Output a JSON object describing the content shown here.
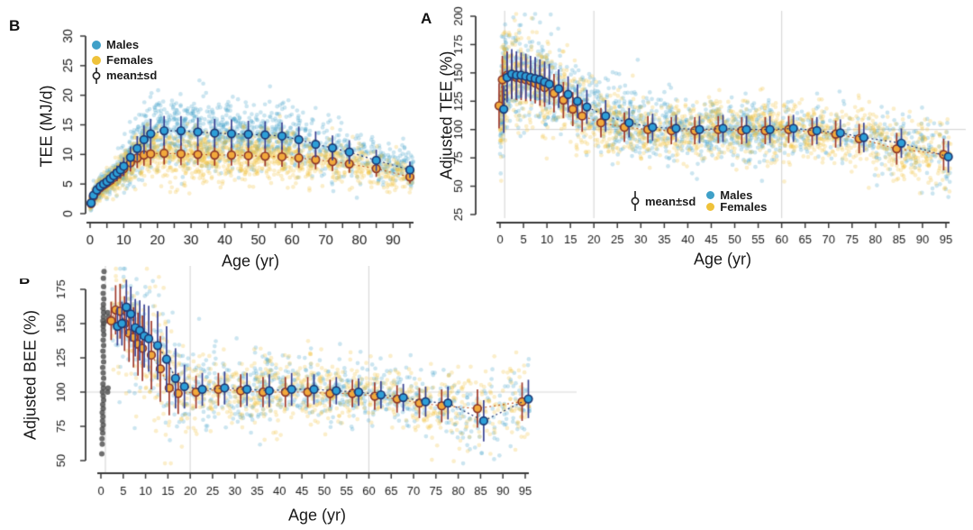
{
  "figure": {
    "panels": [
      {
        "label": "B",
        "xlabel": "Age (yr)",
        "ylabel": "TEE (MJ/d)"
      },
      {
        "label": "A",
        "xlabel": "Age (yr)",
        "ylabel": "Adjusted TEE (%)"
      },
      {
        "label": "B",
        "xlabel": "Age (yr)",
        "ylabel": "Adjusted BEE (%)"
      }
    ],
    "legend": {
      "males": "Males",
      "females": "Females",
      "meansd": "mean±sd"
    }
  },
  "colors": {
    "male_scatter": "#3FA0C8",
    "female_scatter": "#EFC23A",
    "male_mean_fill": "#2D9FD8",
    "male_mean_stroke": "#1E3A74",
    "male_errbar": "#3A4392",
    "male_dotline": "#27356E",
    "female_mean_fill": "#F2A93B",
    "female_mean_stroke": "#8E3A2B",
    "female_errbar": "#A03A2C",
    "female_dotline": "#C2602B",
    "neonate_gray": "#4A4A4A",
    "grid": "#D9D9D9",
    "axis": "#3A3A3A",
    "text": "#1A1A1A"
  },
  "chart_data": [
    {
      "id": "tee",
      "panel_label": "B",
      "type": "scatter",
      "xlabel": "Age (yr)",
      "ylabel": "TEE (MJ/d)",
      "xlim": [
        0,
        96
      ],
      "ylim": [
        0,
        30
      ],
      "xticks": [
        0,
        5,
        10,
        15,
        20,
        25,
        30,
        35,
        40,
        45,
        50,
        55,
        60,
        65,
        70,
        75,
        80,
        85,
        90,
        95
      ],
      "xlabels": [
        0,
        10,
        20,
        30,
        40,
        50,
        60,
        70,
        80,
        90
      ],
      "yticks": [
        0,
        5,
        10,
        15,
        20,
        25,
        30
      ],
      "gridlines": {
        "v": [],
        "h": []
      },
      "legend": [
        "Males",
        "Females",
        "mean±sd"
      ],
      "series": [
        {
          "name": "Males mean±sd",
          "ages": [
            0.3,
            1,
            2,
            3,
            4,
            5,
            6,
            7,
            8,
            9,
            10,
            12,
            14,
            16,
            18,
            22,
            27,
            32,
            37,
            42,
            47,
            52,
            57,
            62,
            67,
            72,
            77,
            85,
            95
          ],
          "mean": [
            1.8,
            3.1,
            4.0,
            4.6,
            5.0,
            5.4,
            5.9,
            6.4,
            6.9,
            7.4,
            8.0,
            9.5,
            11.0,
            12.5,
            13.5,
            14.0,
            14.0,
            13.8,
            13.6,
            13.5,
            13.4,
            13.3,
            13.1,
            12.5,
            11.7,
            11.1,
            10.4,
            9.0,
            7.4
          ],
          "sd": [
            0.4,
            0.6,
            0.7,
            0.8,
            0.9,
            1.0,
            1.0,
            1.1,
            1.2,
            1.3,
            1.5,
            1.8,
            2.1,
            2.4,
            2.5,
            2.5,
            2.5,
            2.4,
            2.4,
            2.4,
            2.3,
            2.3,
            2.3,
            2.2,
            2.2,
            2.1,
            2.0,
            1.8,
            1.4
          ]
        },
        {
          "name": "Females mean±sd",
          "ages": [
            0.3,
            1,
            2,
            3,
            4,
            5,
            6,
            7,
            8,
            9,
            10,
            12,
            14,
            16,
            18,
            22,
            27,
            32,
            37,
            42,
            47,
            52,
            57,
            62,
            67,
            72,
            77,
            85,
            95
          ],
          "mean": [
            1.7,
            2.9,
            3.8,
            4.4,
            4.8,
            5.2,
            5.6,
            6.1,
            6.6,
            7.1,
            7.6,
            8.6,
            9.4,
            9.9,
            10.1,
            10.2,
            10.1,
            10.0,
            9.9,
            9.9,
            9.8,
            9.7,
            9.6,
            9.4,
            9.1,
            8.8,
            8.4,
            7.6,
            6.2
          ],
          "sd": [
            0.4,
            0.5,
            0.6,
            0.7,
            0.8,
            0.9,
            0.9,
            1.0,
            1.1,
            1.2,
            1.3,
            1.5,
            1.7,
            1.8,
            1.9,
            1.9,
            1.9,
            1.8,
            1.8,
            1.8,
            1.8,
            1.7,
            1.7,
            1.7,
            1.6,
            1.6,
            1.5,
            1.4,
            1.1
          ]
        }
      ],
      "scatter": {
        "spread": 1.15,
        "male": {
          "n": 1600,
          "seed": 11,
          "mix": [
            [
              0,
              1.2,
              0.05
            ],
            [
              1,
              12,
              0.18
            ],
            [
              12,
              20,
              0.1
            ],
            [
              20,
              62,
              0.47
            ],
            [
              62,
              96,
              0.2
            ]
          ]
        },
        "female": {
          "n": 1600,
          "seed": 12,
          "mix": [
            [
              0,
              1.2,
              0.05
            ],
            [
              1,
              12,
              0.18
            ],
            [
              12,
              20,
              0.1
            ],
            [
              20,
              62,
              0.47
            ],
            [
              62,
              96,
              0.2
            ]
          ]
        },
        "clip": [
          0.3,
          29.5
        ]
      }
    },
    {
      "id": "adjtee",
      "panel_label": "A",
      "type": "scatter",
      "xlabel": "Age (yr)",
      "ylabel": "Adjusted TEE (%)",
      "xlim": [
        0,
        96
      ],
      "ylim": [
        25,
        200
      ],
      "xticks": [
        0,
        5,
        10,
        15,
        20,
        25,
        30,
        35,
        40,
        45,
        50,
        55,
        60,
        65,
        70,
        75,
        80,
        85,
        90,
        95
      ],
      "xlabels": [
        0,
        5,
        10,
        15,
        20,
        25,
        30,
        35,
        40,
        45,
        50,
        55,
        60,
        65,
        70,
        75,
        80,
        85,
        90,
        95
      ],
      "yticks": [
        25,
        50,
        75,
        100,
        125,
        150,
        175,
        200
      ],
      "gridlines": {
        "v": [
          1,
          20,
          60
        ],
        "h": [
          100
        ]
      },
      "legend": [
        "mean±sd",
        "Males",
        "Females"
      ],
      "series": [
        {
          "name": "Males mean±sd",
          "ages": [
            0.3,
            1,
            2,
            3,
            4,
            5,
            6,
            7,
            8,
            9,
            10,
            12,
            14,
            16,
            18,
            22,
            27,
            32,
            37,
            42,
            47,
            52,
            57,
            62,
            67,
            72,
            77,
            85,
            95
          ],
          "mean": [
            118,
            146,
            149,
            148,
            148,
            147,
            146,
            145,
            144,
            142,
            140,
            136,
            131,
            125,
            120,
            112,
            106,
            102,
            101,
            100,
            101,
            100,
            100,
            101,
            99,
            97,
            93,
            88,
            76
          ],
          "sd": [
            21,
            22,
            22,
            21,
            20,
            20,
            19,
            19,
            18,
            18,
            18,
            17,
            16,
            15,
            15,
            14,
            13,
            12,
            12,
            12,
            12,
            12,
            12,
            12,
            12,
            12,
            13,
            13,
            14
          ]
        },
        {
          "name": "Females mean±sd",
          "ages": [
            0.3,
            1,
            2,
            3,
            4,
            5,
            6,
            7,
            8,
            9,
            10,
            12,
            14,
            16,
            18,
            22,
            27,
            32,
            37,
            42,
            47,
            52,
            57,
            62,
            67,
            72,
            77,
            85,
            95
          ],
          "mean": [
            121,
            144,
            148,
            147,
            146,
            145,
            144,
            143,
            141,
            139,
            137,
            132,
            126,
            118,
            112,
            106,
            102,
            100,
            99,
            99,
            100,
            99,
            99,
            100,
            98,
            96,
            92,
            83,
            78
          ],
          "sd": [
            20,
            21,
            21,
            20,
            20,
            19,
            19,
            18,
            18,
            18,
            17,
            17,
            16,
            15,
            14,
            13,
            13,
            12,
            12,
            12,
            12,
            12,
            12,
            12,
            12,
            12,
            13,
            14,
            14
          ]
        }
      ],
      "scatter": {
        "spread": 1.1,
        "male": {
          "n": 1500,
          "seed": 21,
          "mix": [
            [
              0,
              1.2,
              0.07
            ],
            [
              1,
              12,
              0.17
            ],
            [
              12,
              20,
              0.09
            ],
            [
              20,
              62,
              0.47
            ],
            [
              62,
              96,
              0.2
            ]
          ]
        },
        "female": {
          "n": 1600,
          "seed": 22,
          "mix": [
            [
              0,
              1.2,
              0.06
            ],
            [
              1,
              12,
              0.15
            ],
            [
              12,
              20,
              0.08
            ],
            [
              20,
              62,
              0.41
            ],
            [
              62,
              96,
              0.3
            ]
          ]
        },
        "clip": [
          30,
          202
        ]
      }
    },
    {
      "id": "adjbee",
      "panel_label": "B",
      "type": "scatter",
      "xlabel": "Age (yr)",
      "ylabel": "Adjusted BEE (%)",
      "xlim": [
        0,
        96
      ],
      "ylim": [
        45,
        190
      ],
      "xticks": [
        0,
        5,
        10,
        15,
        20,
        25,
        30,
        35,
        40,
        45,
        50,
        55,
        60,
        65,
        70,
        75,
        80,
        85,
        90,
        95
      ],
      "xlabels": [
        0,
        5,
        10,
        15,
        20,
        25,
        30,
        35,
        40,
        45,
        50,
        55,
        60,
        65,
        70,
        75,
        80,
        85,
        90,
        95
      ],
      "yticks": [
        50,
        75,
        100,
        125,
        150,
        175
      ],
      "gridlines": {
        "v": [
          1,
          20,
          60
        ],
        "h": [
          100
        ]
      },
      "legend": [],
      "series": [
        {
          "name": "Males mean±sd",
          "ages": [
            3,
            4,
            5,
            6,
            7,
            8,
            9,
            10,
            12,
            14,
            16,
            18,
            22,
            27,
            32,
            37,
            42,
            47,
            52,
            57,
            62,
            67,
            72,
            77,
            85,
            95
          ],
          "mean": [
            148,
            150,
            162,
            157,
            147,
            145,
            141,
            139,
            134,
            124,
            110,
            104,
            102,
            103,
            102,
            101,
            102,
            102,
            101,
            100,
            98,
            96,
            93,
            92,
            79,
            95
          ],
          "sd": [
            14,
            16,
            20,
            20,
            21,
            22,
            23,
            24,
            25,
            24,
            22,
            16,
            12,
            12,
            12,
            12,
            12,
            11,
            10,
            10,
            10,
            10,
            11,
            12,
            15,
            14
          ]
        },
        {
          "name": "Females mean±sd",
          "ages": [
            3,
            4,
            5,
            6,
            7,
            8,
            9,
            10,
            12,
            14,
            16,
            18,
            22,
            27,
            32,
            37,
            42,
            47,
            52,
            57,
            62,
            67,
            72,
            77,
            85,
            95
          ],
          "mean": [
            152,
            160,
            159,
            150,
            143,
            140,
            135,
            132,
            127,
            117,
            103,
            99,
            100,
            102,
            101,
            100,
            100,
            100,
            99,
            99,
            97,
            95,
            92,
            90,
            88,
            93
          ],
          "sd": [
            14,
            18,
            20,
            20,
            21,
            22,
            23,
            24,
            25,
            24,
            20,
            15,
            12,
            12,
            12,
            11,
            11,
            11,
            10,
            10,
            10,
            10,
            11,
            12,
            14,
            14
          ]
        }
      ],
      "scatter": {
        "spread": 1.1,
        "male": {
          "n": 800,
          "seed": 31,
          "mix": [
            [
              2.5,
              12,
              0.1
            ],
            [
              12,
              20,
              0.1
            ],
            [
              20,
              62,
              0.52
            ],
            [
              62,
              96,
              0.28
            ]
          ]
        },
        "female": {
          "n": 900,
          "seed": 32,
          "mix": [
            [
              2.5,
              12,
              0.1
            ],
            [
              12,
              20,
              0.1
            ],
            [
              20,
              62,
              0.48
            ],
            [
              62,
              96,
              0.32
            ]
          ]
        },
        "clip": [
          48,
          190
        ]
      },
      "gray_points": [
        [
          0.2,
          55
        ],
        [
          0.3,
          62
        ],
        [
          0.25,
          66
        ],
        [
          0.4,
          70
        ],
        [
          0.3,
          73
        ],
        [
          0.5,
          76
        ],
        [
          0.35,
          79
        ],
        [
          0.45,
          82
        ],
        [
          0.3,
          85
        ],
        [
          0.5,
          88
        ],
        [
          0.4,
          91
        ],
        [
          0.6,
          94
        ],
        [
          0.5,
          97
        ],
        [
          0.35,
          100
        ],
        [
          0.55,
          103
        ],
        [
          0.45,
          106
        ],
        [
          0.6,
          110
        ],
        [
          0.5,
          114
        ],
        [
          0.4,
          118
        ],
        [
          0.6,
          122
        ],
        [
          0.55,
          126
        ],
        [
          0.45,
          130
        ],
        [
          0.6,
          134
        ],
        [
          0.5,
          138
        ],
        [
          0.65,
          142
        ],
        [
          0.55,
          145
        ],
        [
          0.5,
          148
        ],
        [
          0.6,
          150
        ],
        [
          0.45,
          152
        ],
        [
          0.55,
          155
        ],
        [
          0.6,
          158
        ],
        [
          0.5,
          161
        ],
        [
          0.55,
          164
        ],
        [
          0.65,
          168
        ],
        [
          0.5,
          172
        ],
        [
          0.6,
          177
        ],
        [
          0.55,
          183
        ],
        [
          0.7,
          188
        ],
        [
          1.5,
          100
        ],
        [
          1.6,
          103
        ],
        [
          1.4,
          152
        ],
        [
          1.7,
          155
        ],
        [
          1.5,
          158
        ]
      ]
    }
  ]
}
